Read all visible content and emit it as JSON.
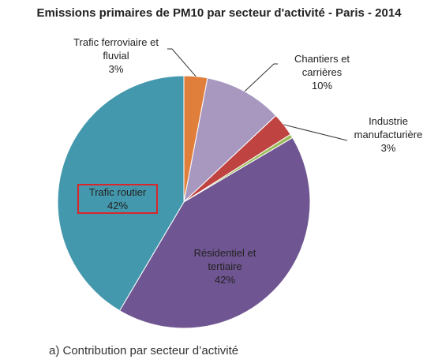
{
  "chart_data": {
    "type": "pie",
    "title": "Emissions  primaires de PM10 par secteur d'activité - Paris - 2014",
    "slices": [
      {
        "id": "ferroviaire",
        "name_lines": [
          "Trafic ferroviaire et",
          "fluvial"
        ],
        "pct_label": "3%",
        "value": 3.0,
        "color": "#e07f3c"
      },
      {
        "id": "chantiers",
        "name_lines": [
          "Chantiers et",
          "carrières"
        ],
        "pct_label": "10%",
        "value": 10.0,
        "color": "#a898c0"
      },
      {
        "id": "industrie",
        "name_lines": [
          "Industrie",
          "manufacturière"
        ],
        "pct_label": "3%",
        "value": 3.0,
        "color": "#bf4340"
      },
      {
        "id": "other",
        "name_lines": [],
        "pct_label": "",
        "value": 0.5,
        "color": "#9bbb59"
      },
      {
        "id": "residentiel",
        "name_lines": [
          "Résidentiel et",
          "tertiaire"
        ],
        "pct_label": "42%",
        "value": 42.0,
        "color": "#6f5591"
      },
      {
        "id": "routier",
        "name_lines": [
          "Trafic routier"
        ],
        "pct_label": "42%",
        "value": 41.5,
        "color": "#4498ad"
      }
    ]
  },
  "caption": "a) Contribution par secteur d’activité"
}
